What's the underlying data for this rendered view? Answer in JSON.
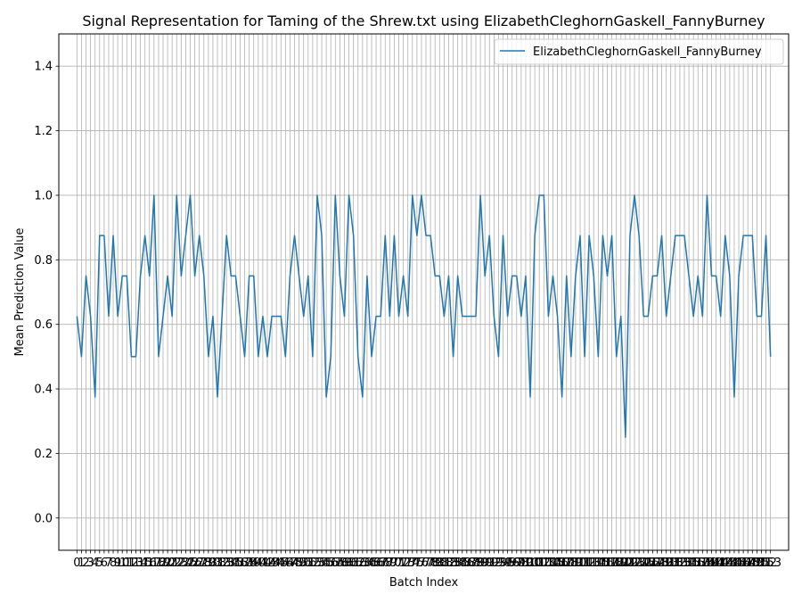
{
  "chart_data": {
    "type": "line",
    "title": "Signal Representation for Taming of the Shrew.txt using ElizabethCleghornGaskell_FannyBurney",
    "xlabel": "Batch Index",
    "ylabel": "Mean Prediction Value",
    "xlim": [
      -4,
      157
    ],
    "ylim": [
      -0.1,
      1.5
    ],
    "y_ticks": [
      0.0,
      0.2,
      0.4,
      0.6,
      0.8,
      1.0,
      1.2,
      1.4
    ],
    "grid": true,
    "legend_position": "top-right",
    "series": [
      {
        "name": "ElizabethCleghornGaskell_FannyBurney",
        "color": "#1f77b4",
        "values": [
          0.625,
          0.5,
          0.75,
          0.625,
          0.375,
          0.875,
          0.875,
          0.625,
          0.875,
          0.625,
          0.75,
          0.75,
          0.5,
          0.5,
          0.75,
          0.875,
          0.75,
          1.0,
          0.5,
          0.625,
          0.75,
          0.625,
          1.0,
          0.75,
          0.875,
          1.0,
          0.75,
          0.875,
          0.75,
          0.5,
          0.625,
          0.375,
          0.625,
          0.875,
          0.75,
          0.75,
          0.625,
          0.5,
          0.75,
          0.75,
          0.5,
          0.625,
          0.5,
          0.625,
          0.625,
          0.625,
          0.5,
          0.75,
          0.875,
          0.75,
          0.625,
          0.75,
          0.5,
          1.0,
          0.875,
          0.375,
          0.5,
          1.0,
          0.75,
          0.625,
          1.0,
          0.875,
          0.5,
          0.375,
          0.75,
          0.5,
          0.625,
          0.625,
          0.875,
          0.625,
          0.875,
          0.625,
          0.75,
          0.625,
          1.0,
          0.875,
          1.0,
          0.875,
          0.875,
          0.75,
          0.75,
          0.625,
          0.75,
          0.5,
          0.75,
          0.625,
          0.625,
          0.625,
          0.625,
          1.0,
          0.75,
          0.875,
          0.625,
          0.5,
          0.875,
          0.625,
          0.75,
          0.75,
          0.625,
          0.75,
          0.375,
          0.875,
          1.0,
          1.0,
          0.625,
          0.75,
          0.625,
          0.375,
          0.75,
          0.5,
          0.75,
          0.875,
          0.5,
          0.875,
          0.75,
          0.5,
          0.875,
          0.75,
          0.875,
          0.5,
          0.625,
          0.25,
          0.875,
          1.0,
          0.875,
          0.625,
          0.625,
          0.75,
          0.75,
          0.875,
          0.625,
          0.75,
          0.875,
          0.875,
          0.875,
          0.75,
          0.625,
          0.75,
          0.625,
          1.0,
          0.75,
          0.75,
          0.625,
          0.875,
          0.75,
          0.375,
          0.75,
          0.875,
          0.875,
          0.875,
          0.625,
          0.625,
          0.875,
          0.5
        ]
      }
    ]
  }
}
